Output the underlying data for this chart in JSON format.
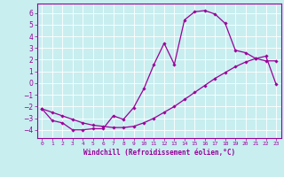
{
  "xlabel": "Windchill (Refroidissement éolien,°C)",
  "bg_color": "#c8eef0",
  "grid_color": "#ffffff",
  "line_color": "#990099",
  "xlim": [
    -0.5,
    23.5
  ],
  "ylim": [
    -4.7,
    6.8
  ],
  "xticks": [
    0,
    1,
    2,
    3,
    4,
    5,
    6,
    7,
    8,
    9,
    10,
    11,
    12,
    13,
    14,
    15,
    16,
    17,
    18,
    19,
    20,
    21,
    22,
    23
  ],
  "yticks": [
    -4,
    -3,
    -2,
    -1,
    0,
    1,
    2,
    3,
    4,
    5,
    6
  ],
  "hours": [
    0,
    1,
    2,
    3,
    4,
    5,
    6,
    7,
    8,
    9,
    10,
    11,
    12,
    13,
    14,
    15,
    16,
    17,
    18,
    19,
    20,
    21,
    22,
    23
  ],
  "temp_curve": [
    -2.2,
    -3.2,
    -3.4,
    -4.0,
    -4.0,
    -3.9,
    -3.9,
    -2.8,
    -3.1,
    -2.1,
    -0.5,
    1.6,
    3.4,
    1.6,
    5.4,
    6.1,
    6.2,
    5.9,
    5.1,
    2.8,
    2.6,
    2.1,
    1.9,
    1.9
  ],
  "linear_curve": [
    -2.2,
    -2.5,
    -2.8,
    -3.1,
    -3.4,
    -3.6,
    -3.7,
    -3.8,
    -3.8,
    -3.7,
    -3.4,
    -3.0,
    -2.5,
    -2.0,
    -1.4,
    -0.8,
    -0.2,
    0.4,
    0.9,
    1.4,
    1.8,
    2.1,
    2.3,
    -0.1
  ]
}
